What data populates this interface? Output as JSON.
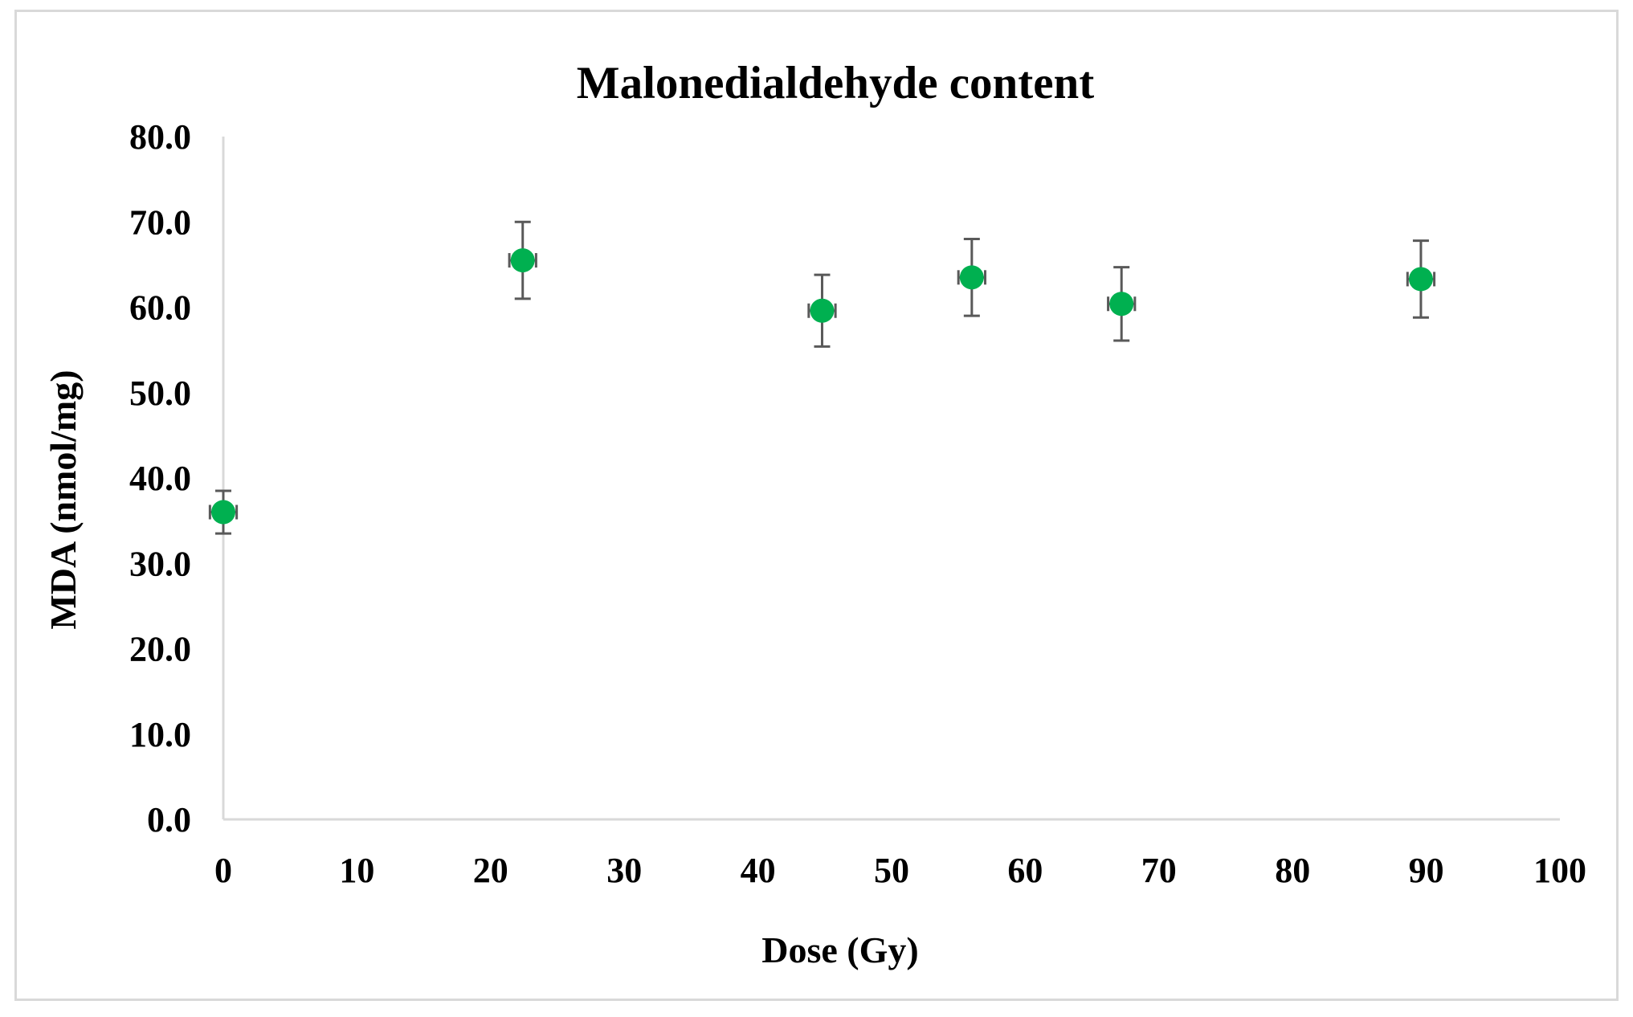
{
  "chart_data": {
    "type": "scatter",
    "title": "Malonedialdehyde content",
    "xlabel": "Dose (Gy)",
    "ylabel": "MDA (nmol/mg)",
    "xlim": [
      0,
      100
    ],
    "ylim": [
      0,
      80
    ],
    "xticks": [
      "0",
      "10",
      "20",
      "30",
      "40",
      "50",
      "60",
      "70",
      "80",
      "90",
      "100"
    ],
    "yticks": [
      "0.0",
      "10.0",
      "20.0",
      "30.0",
      "40.0",
      "50.0",
      "60.0",
      "70.0",
      "80.0"
    ],
    "grid": false,
    "legend": "none",
    "marker_color": "#00b050",
    "error_bar_color": "#595959",
    "axis_color": "#d9d9d9",
    "points": [
      {
        "x": 0.0,
        "y": 36.0,
        "y_err": 2.5,
        "x_err": 1.0
      },
      {
        "x": 22.4,
        "y": 65.5,
        "y_err": 4.5,
        "x_err": 1.0
      },
      {
        "x": 44.8,
        "y": 59.6,
        "y_err": 4.2,
        "x_err": 1.0
      },
      {
        "x": 56.0,
        "y": 63.5,
        "y_err": 4.5,
        "x_err": 1.0
      },
      {
        "x": 67.2,
        "y": 60.4,
        "y_err": 4.3,
        "x_err": 1.0
      },
      {
        "x": 89.6,
        "y": 63.3,
        "y_err": 4.5,
        "x_err": 1.0
      }
    ]
  }
}
